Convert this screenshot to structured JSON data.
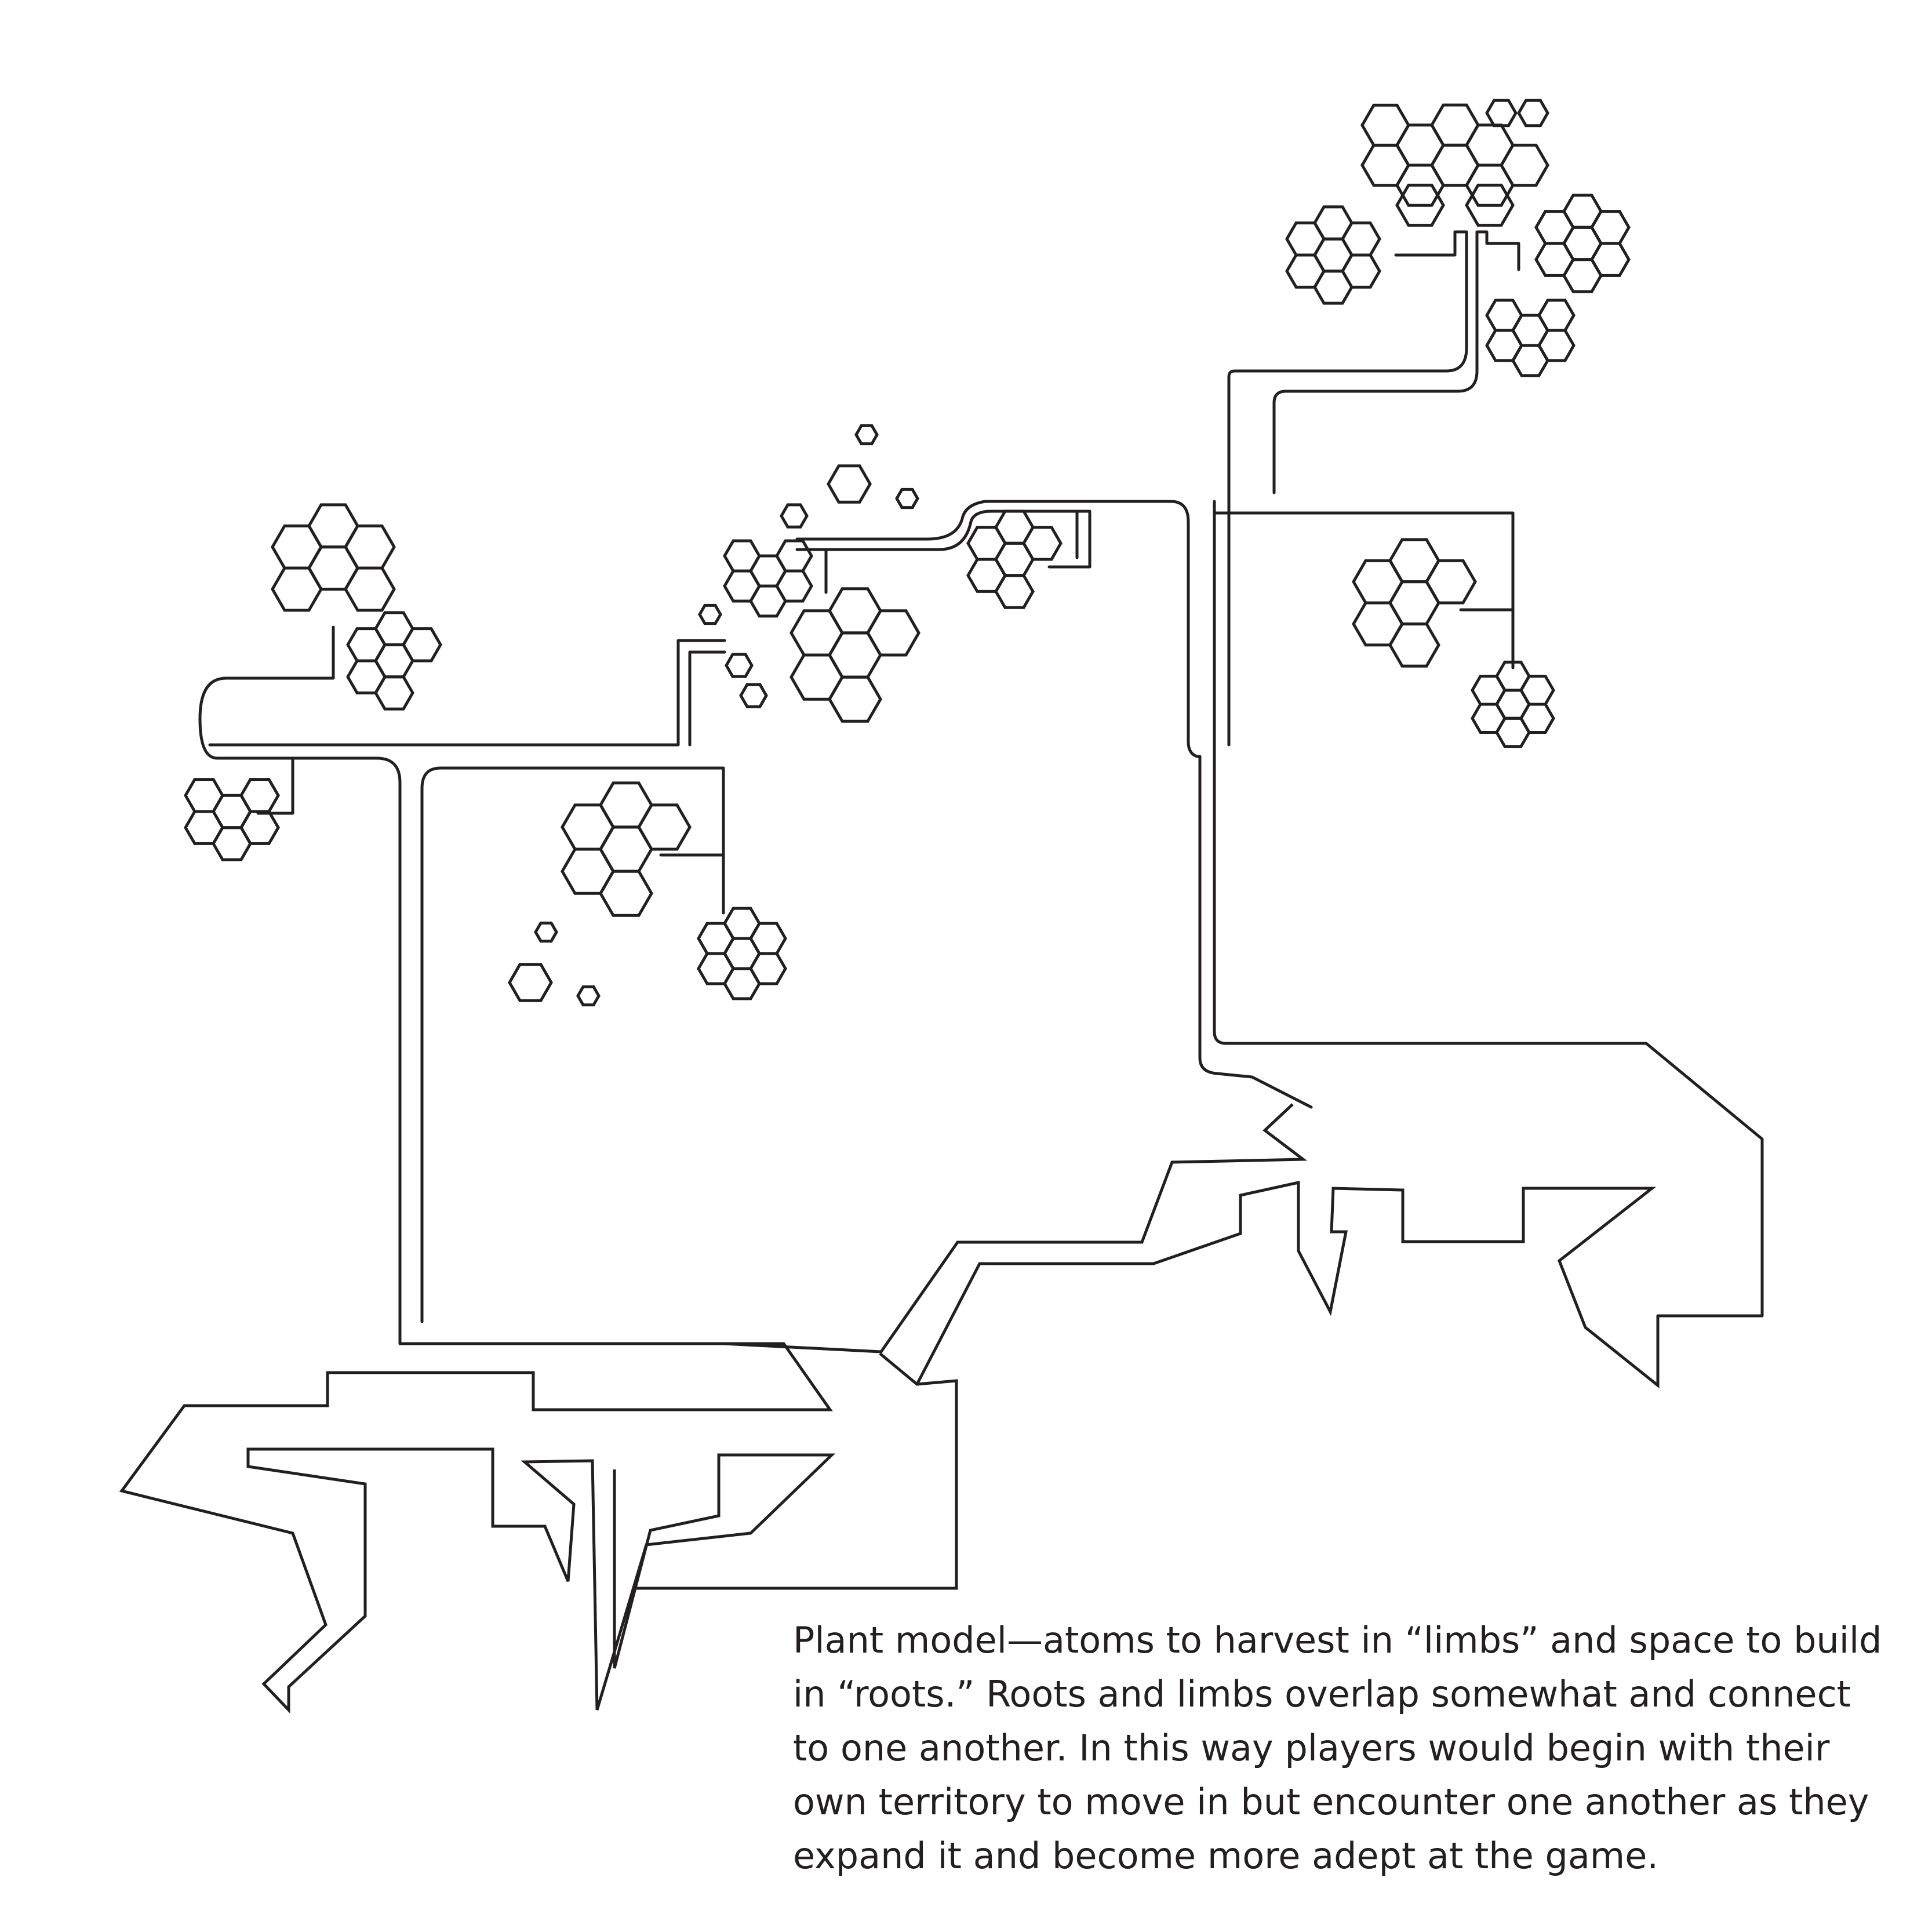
{
  "caption": {
    "lines": [
      "Plant model—atoms to harvest in “limbs” and space to build",
      "in “roots.” Roots and limbs overlap somewhat and connect",
      "to one another. In this way players would begin with their",
      "own territory to move in but encounter one another as they",
      "expand it and become more adept at the game."
    ]
  },
  "colors": {
    "stroke": "#231f20",
    "background": "#ffffff"
  }
}
